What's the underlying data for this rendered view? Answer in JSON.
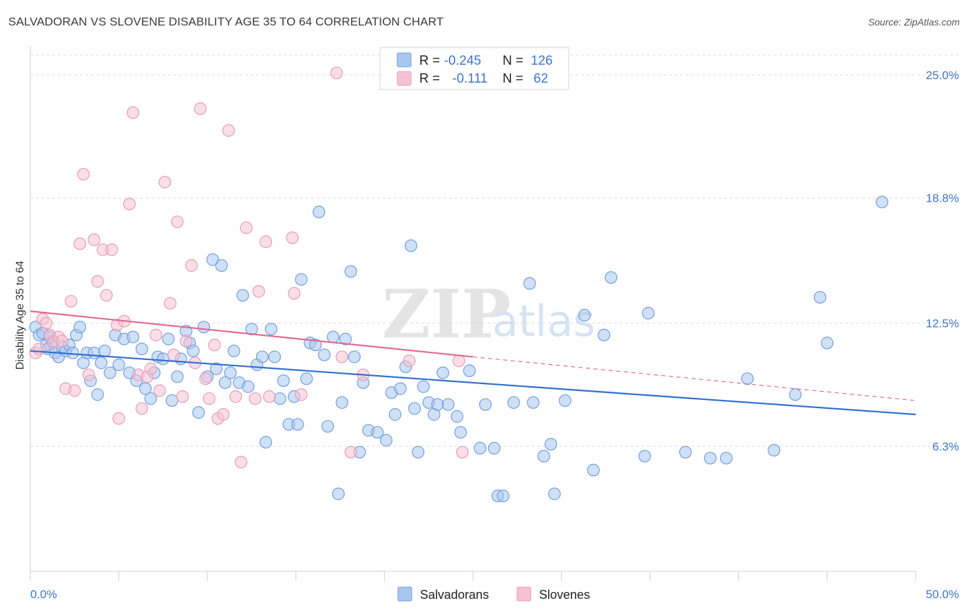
{
  "title": "SALVADORAN VS SLOVENE DISABILITY AGE 35 TO 64 CORRELATION CHART",
  "source": "Source: ZipAtlas.com",
  "watermark": {
    "zip": "ZIP",
    "atlas": "atlas"
  },
  "colors": {
    "blue_fill": "#a9c6ee",
    "blue_stroke": "#6f9fdc",
    "blue_line": "#2f6fd0",
    "pink_fill": "#f6c2d3",
    "pink_stroke": "#e99ab4",
    "pink_line": "#e06a93",
    "accent_text": "#3d74c9"
  },
  "legend": {
    "rows": [
      {
        "r_label": "R =",
        "r_value": "-0.245",
        "n_label": "N =",
        "n_value": "126"
      },
      {
        "r_label": "R =",
        "r_value": "-0.111",
        "n_label": "N =",
        "n_value": "62"
      }
    ]
  },
  "chart_data": {
    "type": "scatter",
    "title": "SALVADORAN VS SLOVENE DISABILITY AGE 35 TO 64 CORRELATION CHART",
    "xlabel": "",
    "ylabel": "Disability Age 35 to 64",
    "xlim": [
      0,
      50
    ],
    "ylim": [
      0,
      26
    ],
    "x_tick_labels": [
      {
        "value": 0,
        "label": "0.0%"
      },
      {
        "value": 50,
        "label": "50.0%"
      }
    ],
    "y_ticks": [
      {
        "value": 6.3,
        "label": "6.3%"
      },
      {
        "value": 12.5,
        "label": "12.5%"
      },
      {
        "value": 18.8,
        "label": "18.8%"
      },
      {
        "value": 25.0,
        "label": "25.0%"
      }
    ],
    "grid": true,
    "legend_position": "top-center",
    "series": [
      {
        "name": "Salvadorans",
        "color": "#a9c6ee",
        "trendline": {
          "x0": 0,
          "y0": 11.1,
          "x1": 50,
          "y1": 7.9,
          "style": "solid"
        },
        "points": [
          [
            0.3,
            12.3
          ],
          [
            0.5,
            11.9
          ],
          [
            0.7,
            12.0
          ],
          [
            0.9,
            11.4
          ],
          [
            1.0,
            11.2
          ],
          [
            1.1,
            11.8
          ],
          [
            1.3,
            11.6
          ],
          [
            1.4,
            11.0
          ],
          [
            1.6,
            10.8
          ],
          [
            1.8,
            11.3
          ],
          [
            2.0,
            11.1
          ],
          [
            2.2,
            11.4
          ],
          [
            2.4,
            11.0
          ],
          [
            2.6,
            11.9
          ],
          [
            2.8,
            12.3
          ],
          [
            3.0,
            10.5
          ],
          [
            3.2,
            11.0
          ],
          [
            3.4,
            9.6
          ],
          [
            3.6,
            11.0
          ],
          [
            3.8,
            8.9
          ],
          [
            4.0,
            10.5
          ],
          [
            4.2,
            11.1
          ],
          [
            4.5,
            10.0
          ],
          [
            4.8,
            11.9
          ],
          [
            5.0,
            10.4
          ],
          [
            5.3,
            11.7
          ],
          [
            5.6,
            10.0
          ],
          [
            5.8,
            11.8
          ],
          [
            6.0,
            9.6
          ],
          [
            6.3,
            11.2
          ],
          [
            6.5,
            9.2
          ],
          [
            6.8,
            8.7
          ],
          [
            7.0,
            10.0
          ],
          [
            7.2,
            10.8
          ],
          [
            7.5,
            10.7
          ],
          [
            7.8,
            11.7
          ],
          [
            8.0,
            8.6
          ],
          [
            8.3,
            9.8
          ],
          [
            8.5,
            10.7
          ],
          [
            8.8,
            12.1
          ],
          [
            9.0,
            11.5
          ],
          [
            9.2,
            11.1
          ],
          [
            9.5,
            8.0
          ],
          [
            9.8,
            12.3
          ],
          [
            10.0,
            9.8
          ],
          [
            10.3,
            15.7
          ],
          [
            10.5,
            10.2
          ],
          [
            10.8,
            15.4
          ],
          [
            11.0,
            9.5
          ],
          [
            11.3,
            10.0
          ],
          [
            11.5,
            11.1
          ],
          [
            11.8,
            9.5
          ],
          [
            12.0,
            13.9
          ],
          [
            12.3,
            9.3
          ],
          [
            12.5,
            12.2
          ],
          [
            12.8,
            10.4
          ],
          [
            13.1,
            10.8
          ],
          [
            13.3,
            6.5
          ],
          [
            13.6,
            12.2
          ],
          [
            13.8,
            10.8
          ],
          [
            14.1,
            8.7
          ],
          [
            14.3,
            9.6
          ],
          [
            14.6,
            7.4
          ],
          [
            14.9,
            8.8
          ],
          [
            15.1,
            7.4
          ],
          [
            15.3,
            14.7
          ],
          [
            15.6,
            9.7
          ],
          [
            15.8,
            11.5
          ],
          [
            16.1,
            11.4
          ],
          [
            16.3,
            18.1
          ],
          [
            16.6,
            10.9
          ],
          [
            16.8,
            7.3
          ],
          [
            17.1,
            11.8
          ],
          [
            17.4,
            3.9
          ],
          [
            17.6,
            8.5
          ],
          [
            17.8,
            11.7
          ],
          [
            18.1,
            15.1
          ],
          [
            18.3,
            10.8
          ],
          [
            18.6,
            6.0
          ],
          [
            18.8,
            9.5
          ],
          [
            19.1,
            7.1
          ],
          [
            19.6,
            7.0
          ],
          [
            20.1,
            6.6
          ],
          [
            20.4,
            9.0
          ],
          [
            20.6,
            7.9
          ],
          [
            20.9,
            9.2
          ],
          [
            21.2,
            10.3
          ],
          [
            21.5,
            16.4
          ],
          [
            21.7,
            8.2
          ],
          [
            21.9,
            6.0
          ],
          [
            22.2,
            9.3
          ],
          [
            22.5,
            8.5
          ],
          [
            22.8,
            7.9
          ],
          [
            23.0,
            8.4
          ],
          [
            23.3,
            10.0
          ],
          [
            23.6,
            8.4
          ],
          [
            24.1,
            7.8
          ],
          [
            24.3,
            7.0
          ],
          [
            24.8,
            10.1
          ],
          [
            25.4,
            6.2
          ],
          [
            25.7,
            8.4
          ],
          [
            26.2,
            6.2
          ],
          [
            26.4,
            3.8
          ],
          [
            26.7,
            3.8
          ],
          [
            27.3,
            8.5
          ],
          [
            28.2,
            14.5
          ],
          [
            28.4,
            8.5
          ],
          [
            29.0,
            5.8
          ],
          [
            29.4,
            6.4
          ],
          [
            29.6,
            3.9
          ],
          [
            30.2,
            8.6
          ],
          [
            31.3,
            12.9
          ],
          [
            31.8,
            5.1
          ],
          [
            32.4,
            11.9
          ],
          [
            32.8,
            14.8
          ],
          [
            34.7,
            5.8
          ],
          [
            34.9,
            13.0
          ],
          [
            37.0,
            6.0
          ],
          [
            38.4,
            5.7
          ],
          [
            39.3,
            5.7
          ],
          [
            40.5,
            9.7
          ],
          [
            42.0,
            6.1
          ],
          [
            43.2,
            8.9
          ],
          [
            44.6,
            13.8
          ],
          [
            45.0,
            11.5
          ],
          [
            48.1,
            18.6
          ]
        ]
      },
      {
        "name": "Slovenes",
        "color": "#f6c2d3",
        "trendline": {
          "x0": 0,
          "y0": 13.1,
          "x1": 25,
          "y1": 10.8,
          "style": "solid",
          "extension_to": {
            "x": 50,
            "y": 8.6,
            "style": "dashed"
          }
        },
        "points": [
          [
            0.3,
            11.0
          ],
          [
            0.5,
            11.2
          ],
          [
            0.7,
            12.7
          ],
          [
            0.9,
            12.5
          ],
          [
            1.1,
            11.9
          ],
          [
            1.3,
            11.5
          ],
          [
            1.6,
            11.8
          ],
          [
            1.8,
            11.6
          ],
          [
            2.0,
            9.2
          ],
          [
            2.3,
            13.6
          ],
          [
            2.5,
            9.1
          ],
          [
            2.8,
            16.5
          ],
          [
            3.0,
            20.0
          ],
          [
            3.3,
            9.9
          ],
          [
            3.6,
            16.7
          ],
          [
            3.8,
            14.6
          ],
          [
            4.1,
            16.2
          ],
          [
            4.3,
            13.9
          ],
          [
            4.6,
            16.2
          ],
          [
            4.9,
            12.4
          ],
          [
            5.0,
            7.7
          ],
          [
            5.3,
            12.6
          ],
          [
            5.6,
            18.5
          ],
          [
            5.8,
            23.1
          ],
          [
            6.1,
            9.9
          ],
          [
            6.3,
            8.2
          ],
          [
            6.6,
            9.8
          ],
          [
            6.8,
            10.2
          ],
          [
            7.1,
            11.9
          ],
          [
            7.3,
            9.1
          ],
          [
            7.6,
            19.6
          ],
          [
            7.9,
            13.5
          ],
          [
            8.1,
            10.9
          ],
          [
            8.3,
            17.6
          ],
          [
            8.6,
            8.8
          ],
          [
            8.8,
            11.6
          ],
          [
            9.1,
            15.4
          ],
          [
            9.3,
            10.5
          ],
          [
            9.6,
            23.3
          ],
          [
            9.9,
            9.7
          ],
          [
            10.1,
            8.7
          ],
          [
            10.4,
            11.4
          ],
          [
            10.6,
            7.7
          ],
          [
            10.9,
            7.9
          ],
          [
            11.2,
            22.2
          ],
          [
            11.6,
            8.8
          ],
          [
            11.9,
            5.5
          ],
          [
            12.2,
            17.3
          ],
          [
            12.7,
            8.7
          ],
          [
            12.9,
            14.1
          ],
          [
            13.3,
            16.6
          ],
          [
            13.5,
            8.8
          ],
          [
            14.8,
            16.8
          ],
          [
            14.9,
            14.0
          ],
          [
            15.3,
            8.9
          ],
          [
            17.3,
            25.1
          ],
          [
            17.6,
            10.8
          ],
          [
            18.1,
            6.0
          ],
          [
            21.4,
            10.6
          ],
          [
            24.2,
            10.6
          ],
          [
            24.4,
            6.0
          ],
          [
            18.8,
            9.9
          ]
        ]
      }
    ]
  }
}
